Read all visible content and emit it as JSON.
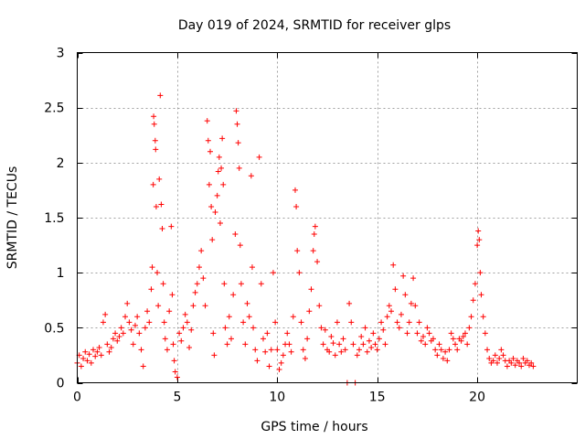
{
  "chart_data": {
    "type": "scatter",
    "title": "Day 019 of 2024, SRMTID for receiver glps",
    "xlabel": "GPS time / hours",
    "ylabel": "SRMTID / TECUs",
    "xlim": [
      0,
      25
    ],
    "ylim": [
      0,
      3
    ],
    "x_ticks": [
      0,
      5,
      10,
      15,
      20
    ],
    "x_tick_labels": [
      "0",
      "5",
      "10",
      "15",
      "20"
    ],
    "y_ticks": [
      0,
      0.5,
      1,
      1.5,
      2,
      2.5,
      3
    ],
    "y_tick_labels": [
      "0",
      "0.5",
      "1",
      "1.5",
      "2",
      "2.5",
      "3"
    ],
    "grid": true,
    "marker": "plus",
    "series": [
      {
        "name": "SRMTID",
        "color": "#ff0000",
        "points": [
          [
            0.0,
            0.18
          ],
          [
            0.1,
            0.25
          ],
          [
            0.2,
            0.15
          ],
          [
            0.3,
            0.22
          ],
          [
            0.4,
            0.28
          ],
          [
            0.5,
            0.2
          ],
          [
            0.6,
            0.26
          ],
          [
            0.7,
            0.18
          ],
          [
            0.8,
            0.3
          ],
          [
            0.9,
            0.24
          ],
          [
            1.0,
            0.28
          ],
          [
            1.1,
            0.32
          ],
          [
            1.2,
            0.25
          ],
          [
            1.3,
            0.55
          ],
          [
            1.4,
            0.62
          ],
          [
            1.5,
            0.35
          ],
          [
            1.6,
            0.28
          ],
          [
            1.7,
            0.32
          ],
          [
            1.8,
            0.4
          ],
          [
            1.9,
            0.45
          ],
          [
            2.0,
            0.38
          ],
          [
            2.1,
            0.42
          ],
          [
            2.2,
            0.5
          ],
          [
            2.3,
            0.45
          ],
          [
            2.4,
            0.6
          ],
          [
            2.5,
            0.72
          ],
          [
            2.6,
            0.55
          ],
          [
            2.7,
            0.48
          ],
          [
            2.8,
            0.35
          ],
          [
            2.9,
            0.52
          ],
          [
            3.0,
            0.6
          ],
          [
            3.1,
            0.45
          ],
          [
            3.2,
            0.3
          ],
          [
            3.3,
            0.15
          ],
          [
            3.4,
            0.5
          ],
          [
            3.5,
            0.65
          ],
          [
            3.6,
            0.55
          ],
          [
            3.7,
            0.85
          ],
          [
            3.75,
            1.05
          ],
          [
            3.8,
            1.8
          ],
          [
            3.82,
            2.42
          ],
          [
            3.85,
            2.35
          ],
          [
            3.9,
            2.2
          ],
          [
            3.92,
            2.12
          ],
          [
            3.95,
            1.6
          ],
          [
            4.0,
            1.0
          ],
          [
            4.05,
            0.7
          ],
          [
            4.1,
            1.85
          ],
          [
            4.15,
            2.61
          ],
          [
            4.2,
            1.62
          ],
          [
            4.25,
            1.4
          ],
          [
            4.3,
            0.9
          ],
          [
            4.35,
            0.55
          ],
          [
            4.4,
            0.4
          ],
          [
            4.5,
            0.3
          ],
          [
            4.6,
            0.65
          ],
          [
            4.7,
            1.42
          ],
          [
            4.75,
            0.8
          ],
          [
            4.8,
            0.35
          ],
          [
            4.85,
            0.2
          ],
          [
            4.9,
            0.1
          ],
          [
            5.0,
            0.05
          ],
          [
            5.1,
            0.45
          ],
          [
            5.2,
            0.38
          ],
          [
            5.3,
            0.5
          ],
          [
            5.4,
            0.62
          ],
          [
            5.5,
            0.55
          ],
          [
            5.6,
            0.32
          ],
          [
            5.7,
            0.48
          ],
          [
            5.8,
            0.7
          ],
          [
            5.9,
            0.82
          ],
          [
            6.0,
            0.9
          ],
          [
            6.1,
            1.05
          ],
          [
            6.2,
            1.2
          ],
          [
            6.3,
            0.95
          ],
          [
            6.4,
            0.7
          ],
          [
            6.5,
            2.38
          ],
          [
            6.55,
            2.2
          ],
          [
            6.6,
            1.8
          ],
          [
            6.65,
            2.1
          ],
          [
            6.7,
            1.6
          ],
          [
            6.75,
            1.3
          ],
          [
            6.8,
            0.45
          ],
          [
            6.85,
            0.25
          ],
          [
            6.9,
            1.55
          ],
          [
            7.0,
            1.7
          ],
          [
            7.05,
            1.92
          ],
          [
            7.1,
            2.05
          ],
          [
            7.15,
            1.45
          ],
          [
            7.2,
            1.95
          ],
          [
            7.25,
            2.22
          ],
          [
            7.3,
            1.8
          ],
          [
            7.35,
            0.9
          ],
          [
            7.4,
            0.5
          ],
          [
            7.5,
            0.35
          ],
          [
            7.6,
            0.6
          ],
          [
            7.7,
            0.4
          ],
          [
            7.8,
            0.8
          ],
          [
            7.9,
            1.35
          ],
          [
            7.95,
            2.47
          ],
          [
            8.0,
            2.35
          ],
          [
            8.05,
            2.18
          ],
          [
            8.1,
            1.95
          ],
          [
            8.15,
            1.25
          ],
          [
            8.2,
            0.9
          ],
          [
            8.3,
            0.55
          ],
          [
            8.4,
            0.35
          ],
          [
            8.5,
            0.72
          ],
          [
            8.6,
            0.6
          ],
          [
            8.7,
            1.88
          ],
          [
            8.75,
            1.05
          ],
          [
            8.8,
            0.5
          ],
          [
            8.9,
            0.3
          ],
          [
            9.0,
            0.2
          ],
          [
            9.1,
            2.05
          ],
          [
            9.2,
            0.9
          ],
          [
            9.3,
            0.4
          ],
          [
            9.4,
            0.28
          ],
          [
            9.5,
            0.45
          ],
          [
            9.6,
            0.15
          ],
          [
            9.7,
            0.3
          ],
          [
            9.8,
            1.0
          ],
          [
            9.9,
            0.55
          ],
          [
            10.0,
            0.3
          ],
          [
            10.1,
            0.12
          ],
          [
            10.2,
            0.18
          ],
          [
            10.3,
            0.25
          ],
          [
            10.4,
            0.35
          ],
          [
            10.5,
            0.45
          ],
          [
            10.6,
            0.35
          ],
          [
            10.7,
            0.28
          ],
          [
            10.8,
            0.6
          ],
          [
            10.9,
            1.75
          ],
          [
            10.95,
            1.6
          ],
          [
            11.0,
            1.2
          ],
          [
            11.1,
            1.0
          ],
          [
            11.2,
            0.55
          ],
          [
            11.3,
            0.3
          ],
          [
            11.4,
            0.22
          ],
          [
            11.5,
            0.4
          ],
          [
            11.6,
            0.65
          ],
          [
            11.7,
            0.85
          ],
          [
            11.8,
            1.2
          ],
          [
            11.85,
            1.35
          ],
          [
            11.9,
            1.42
          ],
          [
            12.0,
            1.1
          ],
          [
            12.1,
            0.7
          ],
          [
            12.2,
            0.5
          ],
          [
            12.3,
            0.35
          ],
          [
            12.4,
            0.48
          ],
          [
            12.5,
            0.3
          ],
          [
            12.6,
            0.28
          ],
          [
            12.7,
            0.42
          ],
          [
            12.8,
            0.36
          ],
          [
            12.9,
            0.25
          ],
          [
            13.0,
            0.55
          ],
          [
            13.1,
            0.35
          ],
          [
            13.2,
            0.28
          ],
          [
            13.3,
            0.4
          ],
          [
            13.4,
            0.3
          ],
          [
            13.5,
            0.0
          ],
          [
            13.6,
            0.72
          ],
          [
            13.7,
            0.55
          ],
          [
            13.8,
            0.35
          ],
          [
            13.9,
            0.0
          ],
          [
            14.0,
            0.25
          ],
          [
            14.1,
            0.3
          ],
          [
            14.2,
            0.42
          ],
          [
            14.3,
            0.35
          ],
          [
            14.4,
            0.5
          ],
          [
            14.5,
            0.28
          ],
          [
            14.6,
            0.38
          ],
          [
            14.7,
            0.32
          ],
          [
            14.8,
            0.45
          ],
          [
            14.9,
            0.35
          ],
          [
            15.0,
            0.3
          ],
          [
            15.1,
            0.4
          ],
          [
            15.2,
            0.55
          ],
          [
            15.3,
            0.48
          ],
          [
            15.4,
            0.35
          ],
          [
            15.5,
            0.6
          ],
          [
            15.6,
            0.7
          ],
          [
            15.7,
            0.65
          ],
          [
            15.8,
            1.07
          ],
          [
            15.9,
            0.85
          ],
          [
            16.0,
            0.55
          ],
          [
            16.1,
            0.5
          ],
          [
            16.2,
            0.62
          ],
          [
            16.3,
            0.97
          ],
          [
            16.4,
            0.8
          ],
          [
            16.5,
            0.45
          ],
          [
            16.6,
            0.55
          ],
          [
            16.7,
            0.72
          ],
          [
            16.8,
            0.95
          ],
          [
            16.9,
            0.7
          ],
          [
            17.0,
            0.45
          ],
          [
            17.1,
            0.55
          ],
          [
            17.2,
            0.38
          ],
          [
            17.3,
            0.42
          ],
          [
            17.4,
            0.35
          ],
          [
            17.5,
            0.5
          ],
          [
            17.6,
            0.45
          ],
          [
            17.7,
            0.38
          ],
          [
            17.8,
            0.4
          ],
          [
            17.9,
            0.3
          ],
          [
            18.0,
            0.25
          ],
          [
            18.1,
            0.35
          ],
          [
            18.2,
            0.3
          ],
          [
            18.3,
            0.22
          ],
          [
            18.4,
            0.28
          ],
          [
            18.5,
            0.2
          ],
          [
            18.6,
            0.3
          ],
          [
            18.7,
            0.45
          ],
          [
            18.8,
            0.4
          ],
          [
            18.9,
            0.35
          ],
          [
            19.0,
            0.3
          ],
          [
            19.1,
            0.4
          ],
          [
            19.2,
            0.38
          ],
          [
            19.3,
            0.42
          ],
          [
            19.4,
            0.45
          ],
          [
            19.5,
            0.35
          ],
          [
            19.6,
            0.5
          ],
          [
            19.7,
            0.6
          ],
          [
            19.8,
            0.75
          ],
          [
            19.9,
            0.9
          ],
          [
            20.0,
            1.25
          ],
          [
            20.05,
            1.38
          ],
          [
            20.1,
            1.3
          ],
          [
            20.15,
            1.0
          ],
          [
            20.2,
            0.8
          ],
          [
            20.3,
            0.6
          ],
          [
            20.4,
            0.45
          ],
          [
            20.5,
            0.3
          ],
          [
            20.6,
            0.22
          ],
          [
            20.7,
            0.18
          ],
          [
            20.8,
            0.2
          ],
          [
            20.9,
            0.25
          ],
          [
            21.0,
            0.18
          ],
          [
            21.1,
            0.22
          ],
          [
            21.2,
            0.3
          ],
          [
            21.3,
            0.25
          ],
          [
            21.4,
            0.2
          ],
          [
            21.5,
            0.15
          ],
          [
            21.6,
            0.2
          ],
          [
            21.7,
            0.18
          ],
          [
            21.8,
            0.22
          ],
          [
            21.9,
            0.16
          ],
          [
            22.0,
            0.2
          ],
          [
            22.1,
            0.18
          ],
          [
            22.2,
            0.15
          ],
          [
            22.3,
            0.22
          ],
          [
            22.4,
            0.18
          ],
          [
            22.5,
            0.2
          ],
          [
            22.6,
            0.16
          ],
          [
            22.7,
            0.18
          ],
          [
            22.8,
            0.15
          ]
        ]
      }
    ]
  }
}
